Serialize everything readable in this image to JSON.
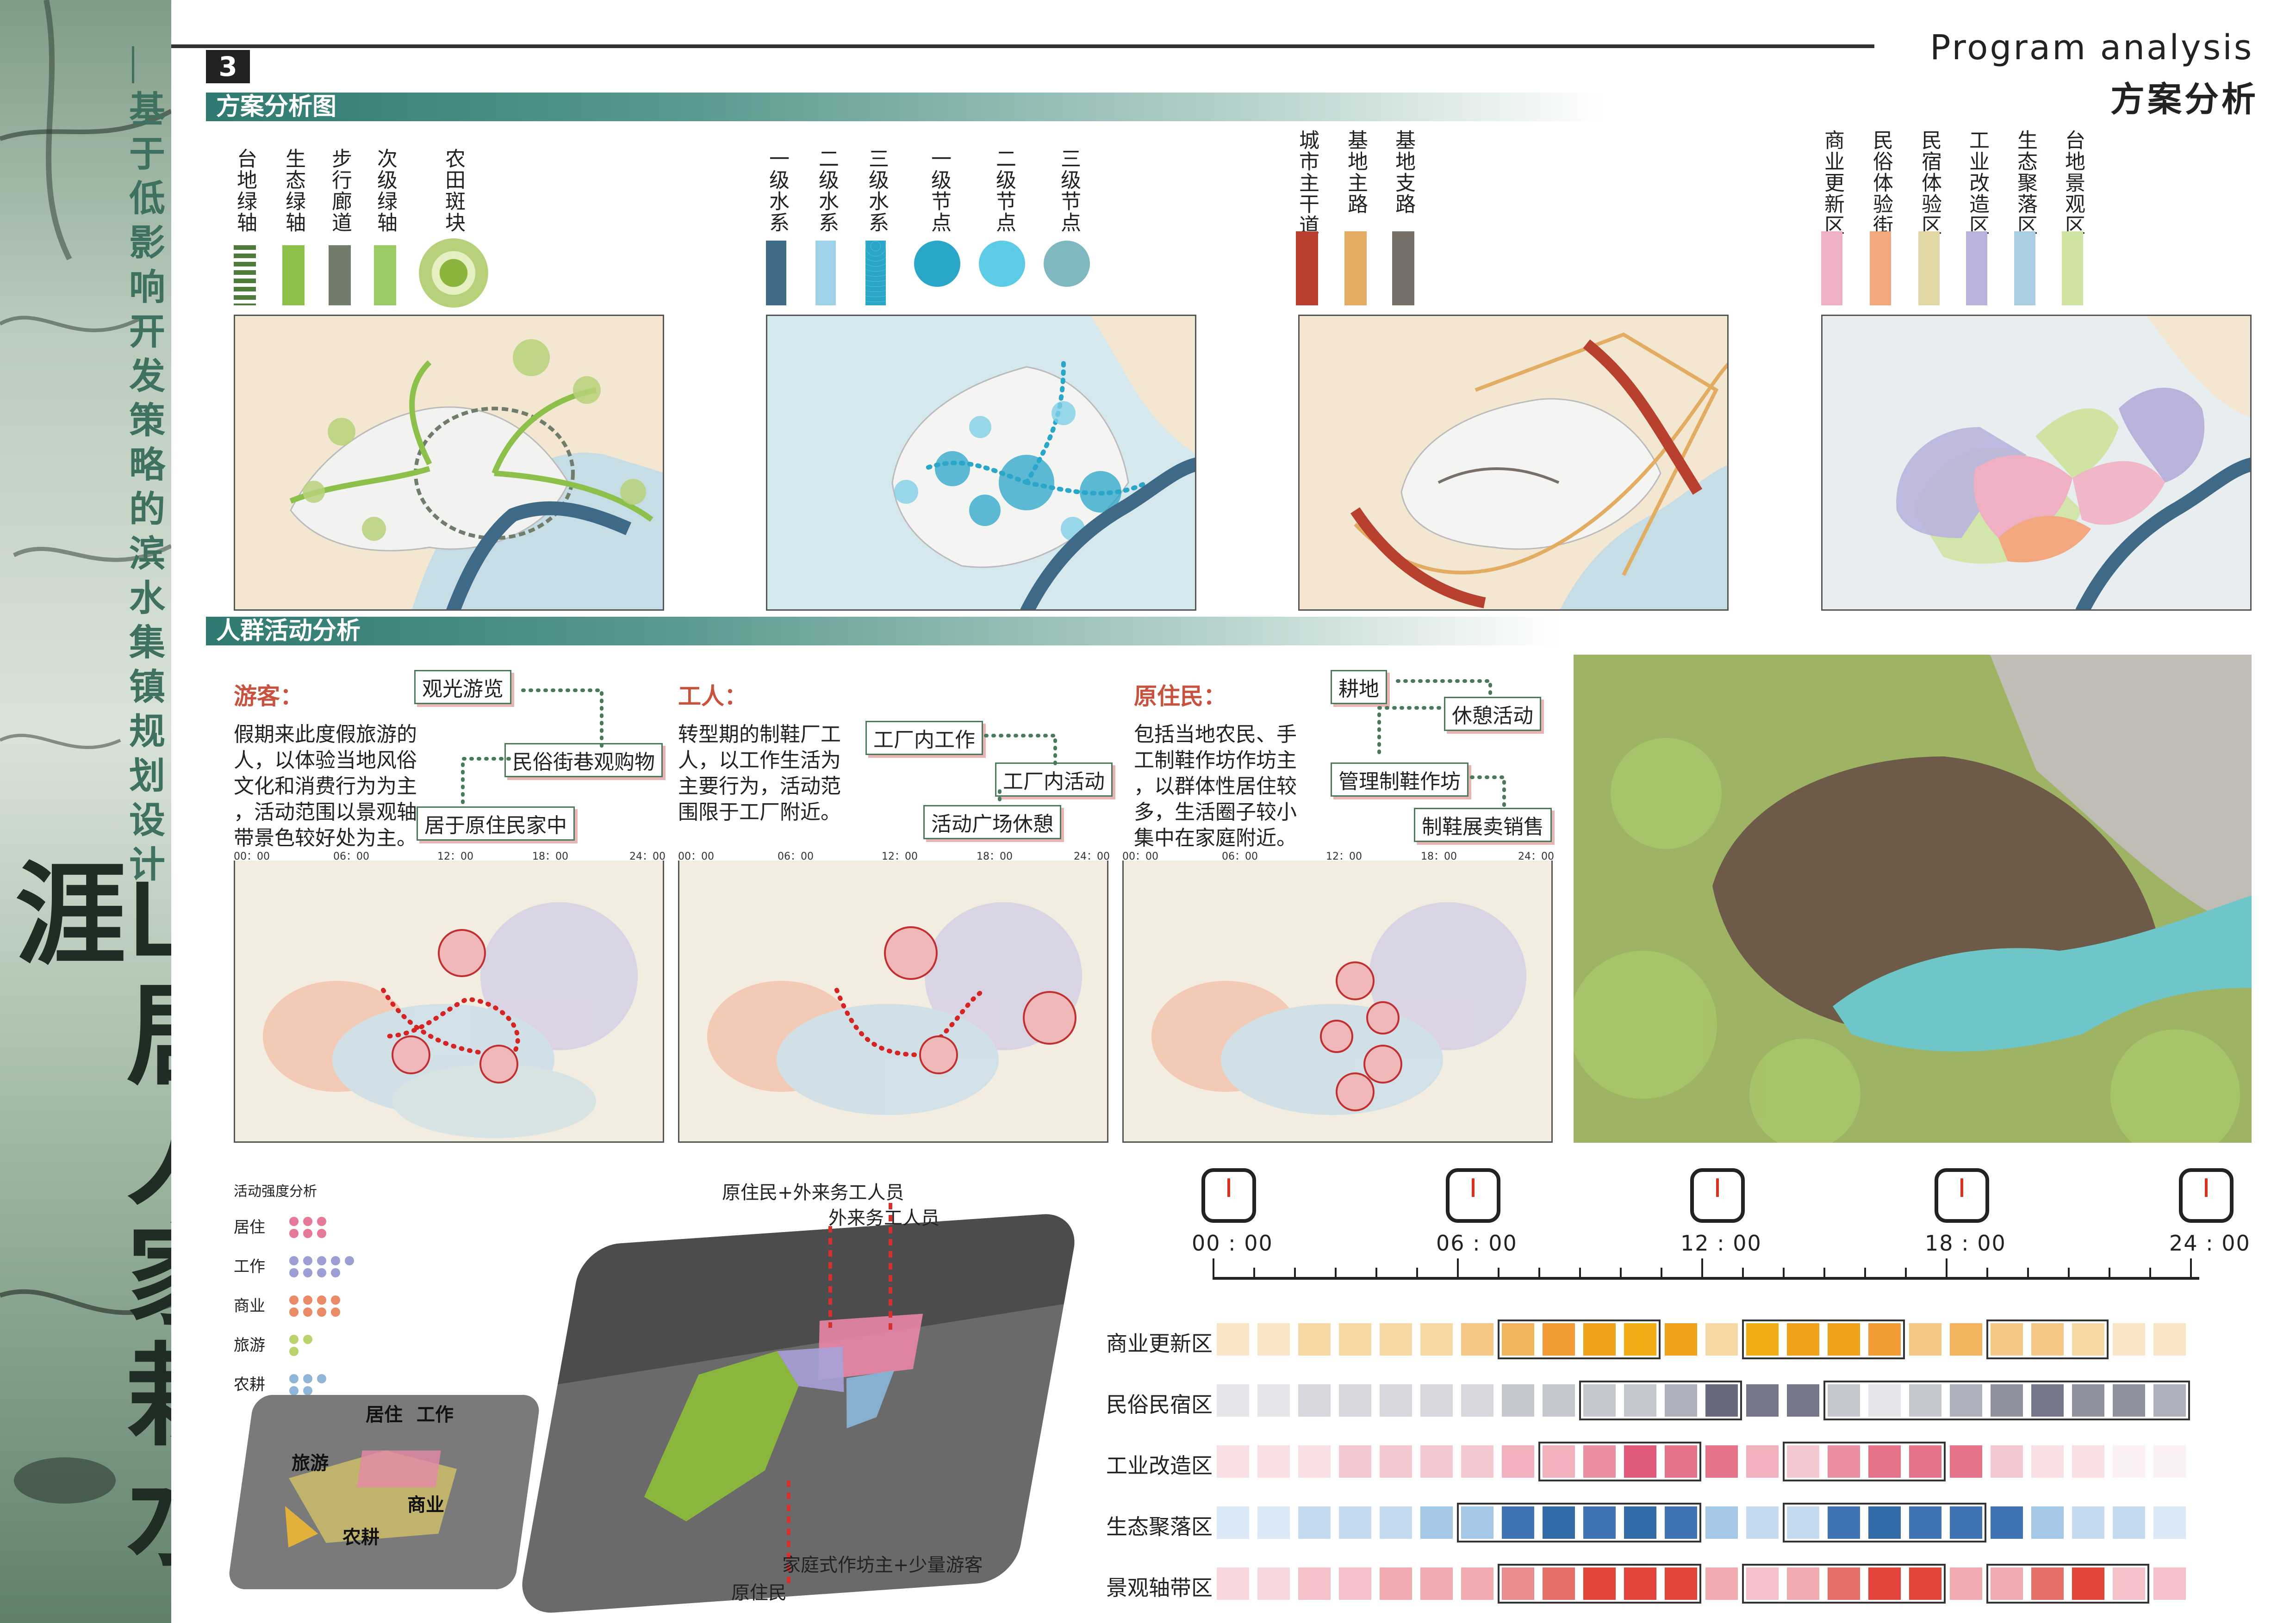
{
  "side": {
    "subtitle": "基于低影响开发策略的滨水集镇规划设计",
    "main_title": "山居人家栽水涯"
  },
  "header": {
    "page_number": "3",
    "title_en": "Program analysis",
    "title_cn": "方案分析"
  },
  "sections": {
    "plan_analysis": "方案分析图",
    "crowd_analysis": "人群活动分析"
  },
  "legend_green": [
    "台地绿轴",
    "生态绿轴",
    "步行廊道",
    "次级绿轴",
    "农田斑块"
  ],
  "legend_water": [
    "一级水系",
    "二级水系",
    "三级水系",
    "一级节点",
    "二级节点",
    "三级节点"
  ],
  "legend_road": [
    "城市主干道",
    "基地主路",
    "基地支路"
  ],
  "legend_zone": [
    "商业更新区",
    "民俗体验街",
    "民宿体验区",
    "工业改造区",
    "生态聚落区",
    "台地景观区"
  ],
  "colors": {
    "green_dark": "#4f7a3c",
    "green_light": "#8cc04a",
    "green_gray": "#6f7d6a",
    "green_mid": "#9acb65",
    "water1": "#3e6a87",
    "water2": "#9fd1e8",
    "water3": "#2aa6c9",
    "road1": "#b8402f",
    "road2": "#e2ad62",
    "road3": "#777068",
    "zone1": "#f0b0c3",
    "zone2": "#f2a77f",
    "zone3": "#e3d7a6",
    "zone4": "#b9b3dc",
    "zone5": "#a9cde3",
    "zone6": "#cfe3a3"
  },
  "groups": [
    {
      "title": "游客：",
      "text": [
        "假期来此度假旅游的",
        "人，以体验当地风俗",
        "文化和消费行为为主",
        "，活动范围以景观轴",
        "带景色较好处为主。"
      ],
      "tags": [
        "观光游览",
        "民俗街巷观购物",
        "居于原住民家中"
      ]
    },
    {
      "title": "工人：",
      "text": [
        "转型期的制鞋厂工",
        "人，以工作生活为",
        "主要行为，活动范",
        "围限于工厂附近。"
      ],
      "tags": [
        "工厂内工作",
        "工厂内活动",
        "活动广场休憩"
      ]
    },
    {
      "title": "原住民：",
      "text": [
        "包括当地农民、手",
        "工制鞋作坊作坊主",
        "，以群体性居住较",
        "多，生活圈子较小",
        "集中在家庭附近。"
      ],
      "tags": [
        "耕地",
        "休憩活动",
        "管理制鞋作坊",
        "制鞋展卖销售"
      ]
    }
  ],
  "mini_timeline_ticks": [
    "00：00",
    "06：00",
    "12：00",
    "18：00",
    "24：00"
  ],
  "activity_legend": {
    "title": "活动强度分析",
    "items": [
      {
        "label": "居住",
        "color": "#e6799a"
      },
      {
        "label": "工作",
        "color": "#9b9fd3"
      },
      {
        "label": "商业",
        "color": "#ea8a66"
      },
      {
        "label": "旅游",
        "color": "#b9d36c"
      },
      {
        "label": "农耕",
        "color": "#8fb6d9"
      }
    ]
  },
  "small_map_labels": [
    "居住",
    "工作",
    "旅游",
    "商业",
    "农耕"
  ],
  "aerial_labels": {
    "top1": "原住民+外来务工人员",
    "top2": "外来务工人员",
    "bottom1": "家庭式作坊主+少量游客",
    "bottom2": "原住民"
  },
  "time_chart": {
    "times": [
      "00 : 00",
      "06 : 00",
      "12 : 00",
      "18 : 00",
      "24 : 00"
    ],
    "rows": [
      {
        "label": "商业更新区",
        "hue": "orange",
        "intensity": [
          1,
          1,
          2,
          2,
          2,
          2,
          3,
          4,
          5,
          6,
          7,
          6,
          2,
          7,
          6,
          6,
          5,
          3,
          4,
          3,
          3,
          2,
          1,
          1
        ],
        "boxes": [
          [
            7,
            11
          ],
          [
            13,
            17
          ],
          [
            19,
            22
          ]
        ]
      },
      {
        "label": "民俗民宿区",
        "hue": "gray",
        "intensity": [
          1,
          1,
          2,
          2,
          2,
          2,
          2,
          3,
          3,
          3,
          3,
          4,
          7,
          6,
          6,
          3,
          1,
          3,
          4,
          5,
          6,
          5,
          5,
          4
        ],
        "boxes": [
          [
            9,
            13
          ],
          [
            15,
            24
          ]
        ]
      },
      {
        "label": "工业改造区",
        "hue": "pink",
        "intensity": [
          1,
          1,
          1,
          2,
          2,
          2,
          2,
          3,
          3,
          4,
          6,
          5,
          5,
          3,
          2,
          4,
          5,
          5,
          5,
          2,
          1,
          1,
          0,
          0
        ],
        "boxes": [
          [
            8,
            12
          ],
          [
            14,
            18
          ]
        ]
      },
      {
        "label": "生态聚落区",
        "hue": "blue",
        "intensity": [
          1,
          1,
          2,
          2,
          2,
          3,
          3,
          6,
          7,
          6,
          7,
          6,
          3,
          2,
          2,
          6,
          7,
          6,
          6,
          6,
          3,
          2,
          2,
          1
        ],
        "boxes": [
          [
            6,
            12
          ],
          [
            14,
            19
          ]
        ]
      },
      {
        "label": "景观轴带区",
        "hue": "red",
        "intensity": [
          1,
          1,
          2,
          2,
          3,
          3,
          3,
          4,
          5,
          6,
          6,
          6,
          3,
          2,
          3,
          5,
          6,
          6,
          3,
          3,
          5,
          6,
          2,
          2
        ],
        "boxes": [
          [
            7,
            12
          ],
          [
            13,
            18
          ],
          [
            19,
            23
          ]
        ]
      }
    ]
  }
}
